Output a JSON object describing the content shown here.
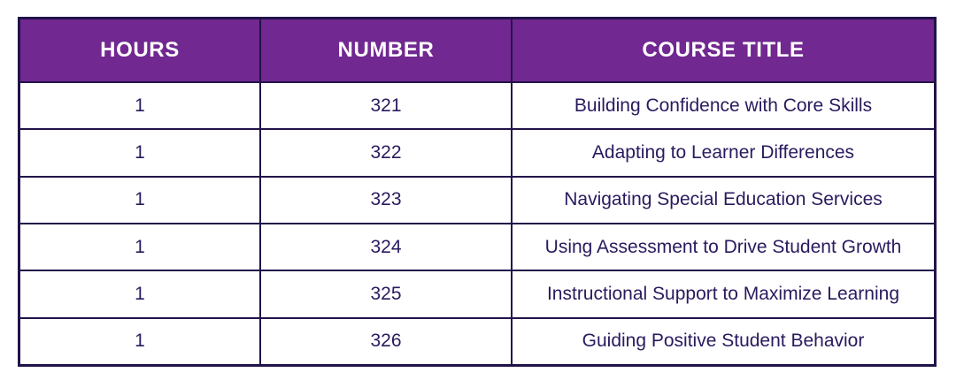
{
  "chart_data": {
    "type": "table",
    "columns": [
      "HOURS",
      "NUMBER",
      "COURSE TITLE"
    ],
    "rows": [
      [
        "1",
        "321",
        "Building Confidence with Core Skills"
      ],
      [
        "1",
        "322",
        "Adapting to Learner Differences"
      ],
      [
        "1",
        "323",
        "Navigating Special Education Services"
      ],
      [
        "1",
        "324",
        "Using Assessment to Drive Student Growth"
      ],
      [
        "1",
        "325",
        "Instructional Support to Maximize Learning"
      ],
      [
        "1",
        "326",
        "Guiding Positive Student Behavior"
      ]
    ]
  },
  "colors": {
    "header_bg": "#712890",
    "border": "#211349",
    "cell_text": "#2a1a5e",
    "header_text": "#ffffff",
    "page_bg": "#ffffff"
  }
}
